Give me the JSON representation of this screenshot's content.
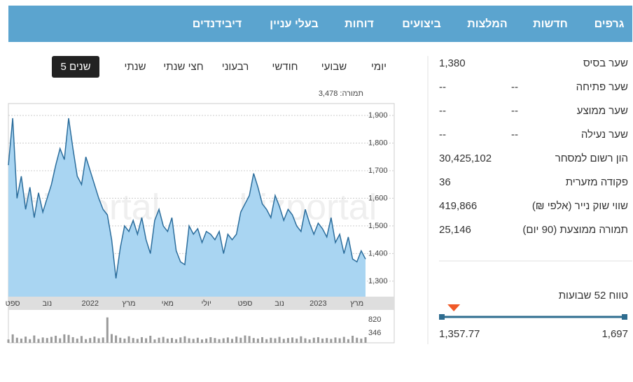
{
  "nav": [
    "גרפים",
    "חדשות",
    "המלצות",
    "ביצועים",
    "דוחות",
    "בעלי עניין",
    "דיבידנדים"
  ],
  "periods": {
    "items": [
      "יומי",
      "שבועי",
      "חודשי",
      "רבעוני",
      "חצי שנתי",
      "שנתי",
      "5 שנים"
    ],
    "active": "5 שנים"
  },
  "stats": {
    "rows": [
      {
        "label": "שער בסיס",
        "value": "1,380"
      },
      {
        "label": "שער פתיחה",
        "value": "--",
        "extra": "--"
      },
      {
        "label": "שער ממוצע",
        "value": "--",
        "extra": "--"
      },
      {
        "label": "שער נעילה",
        "value": "--",
        "extra": "--"
      },
      {
        "label": "הון רשום למסחר",
        "value": "30,425,102"
      },
      {
        "label": "פקודה מזערית",
        "value": "36"
      },
      {
        "label": "שווי שוק נייר (אלפי ₪)",
        "value": "419,866"
      },
      {
        "label": "תמורה ממוצעת (90 יום)",
        "value": "25,146"
      }
    ]
  },
  "range": {
    "title": "טווח 52 שבועות",
    "low": "1,357.77",
    "high": "1,697"
  },
  "watermark": "bizportal",
  "chart_data": [
    {
      "type": "area",
      "annotation": "תמורה: 3,478",
      "color": "#2b6d9c",
      "fill": "#a9d5f2",
      "grid": true,
      "categories": [
        null,
        "ספט",
        null,
        null,
        null,
        null,
        null,
        null,
        null,
        "נוב",
        null,
        null,
        null,
        null,
        null,
        null,
        null,
        null,
        null,
        "2022",
        null,
        null,
        null,
        null,
        null,
        null,
        null,
        null,
        "מרץ",
        null,
        null,
        null,
        null,
        null,
        null,
        null,
        null,
        "מאי",
        null,
        null,
        null,
        null,
        null,
        null,
        null,
        null,
        "יולי",
        null,
        null,
        null,
        null,
        null,
        null,
        null,
        null,
        "ספט",
        null,
        null,
        null,
        null,
        null,
        null,
        null,
        "נוב",
        null,
        null,
        null,
        null,
        null,
        null,
        null,
        null,
        "2023",
        null,
        null,
        null,
        null,
        null,
        null,
        null,
        null,
        "מרץ",
        null,
        null
      ],
      "values": [
        1720,
        1890,
        1600,
        1680,
        1560,
        1640,
        1530,
        1620,
        1550,
        1600,
        1650,
        1720,
        1780,
        1740,
        1890,
        1780,
        1680,
        1650,
        1750,
        1700,
        1650,
        1600,
        1560,
        1540,
        1450,
        1310,
        1420,
        1500,
        1480,
        1520,
        1470,
        1530,
        1450,
        1400,
        1520,
        1560,
        1500,
        1480,
        1530,
        1410,
        1370,
        1360,
        1500,
        1470,
        1490,
        1440,
        1480,
        1470,
        1450,
        1480,
        1400,
        1470,
        1450,
        1470,
        1550,
        1580,
        1610,
        1690,
        1640,
        1580,
        1560,
        1530,
        1610,
        1570,
        1520,
        1560,
        1540,
        1500,
        1480,
        1560,
        1510,
        1470,
        1510,
        1490,
        1460,
        1530,
        1440,
        1470,
        1400,
        1460,
        1380,
        1370,
        1410,
        1380
      ],
      "ylim": [
        1244,
        1943
      ],
      "yticks": [
        {
          "value": 1300,
          "label": "1,300"
        },
        {
          "value": 1400,
          "label": "1,400"
        },
        {
          "value": 1500,
          "label": "1,500"
        },
        {
          "value": 1600,
          "label": "1,600"
        },
        {
          "value": 1700,
          "label": "1,700"
        },
        {
          "value": 1800,
          "label": "1,800"
        },
        {
          "value": 1900,
          "label": "1,900"
        }
      ]
    },
    {
      "type": "bar",
      "color": "#9a9a9a",
      "values": [
        120,
        300,
        180,
        150,
        220,
        130,
        260,
        140,
        190,
        170,
        210,
        250,
        160,
        300,
        280,
        200,
        150,
        240,
        130,
        170,
        220,
        160,
        190,
        900,
        310,
        260,
        180,
        150,
        230,
        170,
        140,
        200,
        160,
        250,
        120,
        180,
        210,
        150,
        170,
        130,
        190,
        230,
        160,
        140,
        180,
        120,
        150,
        200,
        170,
        130,
        160,
        190,
        140,
        220,
        180,
        260,
        240,
        170,
        150,
        200,
        130,
        180,
        160,
        210,
        140,
        170,
        190,
        150,
        230,
        160,
        120,
        180,
        200,
        150,
        170,
        140,
        190,
        160,
        210,
        130,
        250,
        180,
        150,
        200
      ],
      "ylim": [
        0,
        1040
      ],
      "yticks": [
        346,
        820
      ]
    }
  ]
}
